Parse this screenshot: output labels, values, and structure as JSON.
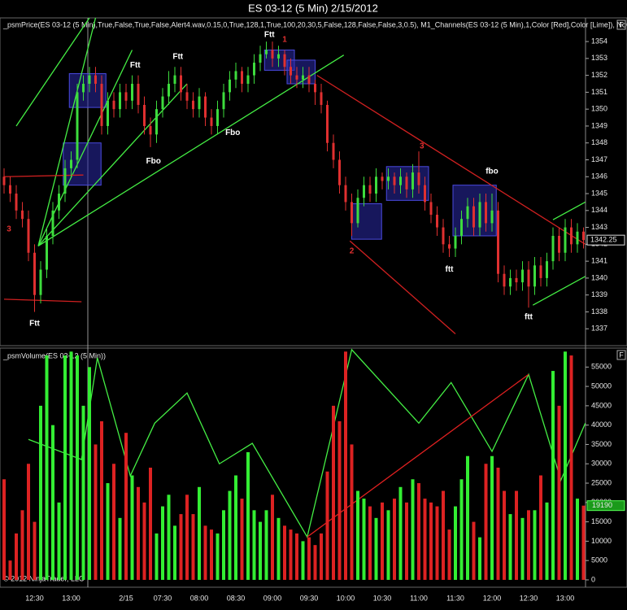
{
  "chart_data": [
    {
      "type": "candlestick",
      "title": "ES 03-12 (5 Min)  2/15/2012",
      "indicator_label": "_psmPrice(ES 03-12 (5 Min),True,False,True,False,Alert4.wav,0.15,0,True,128,1,True,100,20,30,5,False,128,False,False,3,0.5), M1_Channels(ES 03-12 (5 Min),1,Color [Red],Color [Lime]), NoGa–",
      "panel_button": "F",
      "categories": [
        null,
        null,
        null,
        null,
        null,
        "12:30",
        null,
        null,
        null,
        null,
        null,
        "13:00",
        null,
        null,
        null,
        null,
        null,
        null,
        null,
        null,
        "2/15",
        null,
        null,
        null,
        null,
        null,
        "07:30",
        null,
        null,
        null,
        null,
        null,
        "08:00",
        null,
        null,
        null,
        null,
        null,
        "08:30",
        null,
        null,
        null,
        null,
        null,
        "09:00",
        null,
        null,
        null,
        null,
        null,
        "09:30",
        null,
        null,
        null,
        null,
        null,
        "10:00",
        null,
        null,
        null,
        null,
        null,
        "10:30",
        null,
        null,
        null,
        null,
        null,
        "11:00",
        null,
        null,
        null,
        null,
        null,
        "11:30",
        null,
        null,
        null,
        null,
        null,
        "12:00",
        null,
        null,
        null,
        null,
        null,
        "12:30",
        null,
        null,
        null,
        null,
        null,
        "13:00",
        null,
        null,
        null
      ],
      "series": [
        {
          "up_color": "#3ddc3d",
          "down_color": "#e03030",
          "open": [
            1346,
            1345.5,
            1345,
            1344,
            1343.5,
            1341.5,
            1339,
            1340.5,
            1342.5,
            1344,
            1345,
            1346.5,
            1347,
            1351,
            1351.5,
            1352,
            1351.5,
            1349,
            1350.5,
            1350,
            1351,
            1350.5,
            1351.5,
            1350.25,
            1349,
            1348.5,
            1350,
            1350.75,
            1351.5,
            1352,
            1351,
            1350.5,
            1350,
            1350.75,
            1349.5,
            1349,
            1350,
            1351,
            1351.75,
            1352.25,
            1351.5,
            1352,
            1352.75,
            1353.25,
            1353.5,
            1353,
            1353.25,
            1352.5,
            1352,
            1351.75,
            1352,
            1351.5,
            1351,
            1350.25,
            1348,
            1347,
            1345.5,
            1344.5,
            1343.25,
            1344.75,
            1345.5,
            1345,
            1346,
            1345.75,
            1346,
            1345.5,
            1346,
            1345.25,
            1346.25,
            1345.5,
            1344.5,
            1343.75,
            1343,
            1342,
            1341.75,
            1342.5,
            1343.5,
            1344.25,
            1343,
            1344.5,
            1343.25,
            1344,
            1340.25,
            1339.5,
            1340,
            1339.75,
            1340.5,
            1339.5,
            1340.75,
            1340,
            1341,
            1342.5,
            1341.5,
            1343,
            1342,
            1342.75
          ],
          "high": [
            1346.5,
            1346,
            1345.5,
            1344.5,
            1344,
            1342,
            1341,
            1343,
            1344.5,
            1345.5,
            1347,
            1347.5,
            1351.5,
            1352,
            1352.5,
            1352.5,
            1352,
            1351,
            1351,
            1351.5,
            1351.5,
            1352,
            1352,
            1350.75,
            1349.5,
            1350.5,
            1351.25,
            1352.25,
            1352.5,
            1352.5,
            1351.5,
            1351,
            1351.25,
            1351,
            1350,
            1350.5,
            1351.5,
            1352.25,
            1352.75,
            1352.5,
            1352.5,
            1353.25,
            1353.75,
            1354,
            1354,
            1353.75,
            1353.5,
            1353,
            1352.5,
            1352.5,
            1352.5,
            1351.75,
            1351.5,
            1350.5,
            1348.5,
            1347.5,
            1346,
            1345,
            1345.25,
            1346,
            1346,
            1346.5,
            1346.25,
            1346.5,
            1346.25,
            1346.5,
            1346.25,
            1346.75,
            1347.5,
            1346,
            1345,
            1344.25,
            1343.5,
            1342.5,
            1343,
            1344,
            1344.75,
            1344.75,
            1345,
            1345,
            1345,
            1344.5,
            1340.75,
            1340.5,
            1340.5,
            1341,
            1341,
            1341.25,
            1341.25,
            1341.5,
            1343,
            1343,
            1343.5,
            1343.5,
            1343.25,
            1343
          ],
          "low": [
            1345,
            1344.5,
            1343.5,
            1343,
            1341,
            1338,
            1338.5,
            1340,
            1342,
            1343.5,
            1344.5,
            1346,
            1346.5,
            1350.5,
            1351,
            1351,
            1348.5,
            1348.5,
            1349.5,
            1349.5,
            1350,
            1350,
            1349.75,
            1348.5,
            1347.75,
            1348,
            1349.5,
            1350.25,
            1351,
            1350.5,
            1350,
            1349.5,
            1349.5,
            1349,
            1348.5,
            1348.5,
            1349.5,
            1350.5,
            1351.25,
            1351,
            1351,
            1351.5,
            1352.25,
            1353,
            1352.5,
            1352.5,
            1352,
            1351.5,
            1351.25,
            1351.25,
            1351,
            1350.25,
            1349.75,
            1347.5,
            1346.5,
            1345,
            1344,
            1342.5,
            1343,
            1344.25,
            1344.5,
            1344.5,
            1345.25,
            1345.25,
            1345,
            1345,
            1344.75,
            1344.75,
            1345,
            1344,
            1343.25,
            1342.5,
            1341.5,
            1341.25,
            1341.25,
            1342,
            1343,
            1342.5,
            1342.5,
            1342.75,
            1342.75,
            1339.75,
            1339,
            1339,
            1339.25,
            1339.25,
            1338.25,
            1339,
            1339.5,
            1339.5,
            1340.5,
            1341,
            1341,
            1341.5,
            1341.5,
            1341.75
          ],
          "close": [
            1345.5,
            1345,
            1344,
            1343.5,
            1341.5,
            1339,
            1340.5,
            1342.5,
            1344,
            1345,
            1346.5,
            1347,
            1351,
            1351.5,
            1352,
            1351.5,
            1349,
            1350.5,
            1350,
            1351,
            1350.5,
            1351.5,
            1350.25,
            1349,
            1348.5,
            1350,
            1350.75,
            1351.5,
            1352,
            1351,
            1350.5,
            1350,
            1350.75,
            1349.5,
            1349,
            1350,
            1351,
            1351.75,
            1352.25,
            1351.5,
            1352,
            1352.75,
            1353.25,
            1353.5,
            1353,
            1353.25,
            1352.5,
            1352,
            1351.75,
            1352,
            1351.5,
            1351,
            1350.25,
            1348,
            1347,
            1345.5,
            1344.5,
            1343.25,
            1344.75,
            1345.5,
            1345,
            1346,
            1345.75,
            1346,
            1345.5,
            1346,
            1345.25,
            1346.25,
            1345.5,
            1344.5,
            1343.75,
            1343,
            1342,
            1341.75,
            1342.5,
            1343.5,
            1344.25,
            1343,
            1344.5,
            1343.25,
            1344,
            1340.25,
            1339.5,
            1340,
            1339.75,
            1340.5,
            1339.5,
            1340.75,
            1340,
            1341,
            1342.5,
            1341.5,
            1343,
            1342,
            1342.75,
            1342.25
          ]
        }
      ],
      "ylim": [
        1336,
        1355.4
      ],
      "yticks": [
        1337,
        1338,
        1339,
        1340,
        1341,
        1342,
        1343,
        1344,
        1345,
        1346,
        1347,
        1348,
        1349,
        1350,
        1351,
        1352,
        1353,
        1354
      ],
      "grid": false,
      "annotations": [
        {
          "text": "Ftt",
          "x": 5,
          "y": 1337.3,
          "color": "#ffffff"
        },
        {
          "text": "Ftt",
          "x": 21.5,
          "y": 1352.6,
          "color": "#ffffff"
        },
        {
          "text": "Ftt",
          "x": 28.5,
          "y": 1353.1,
          "color": "#ffffff"
        },
        {
          "text": "Ftt",
          "x": 43.5,
          "y": 1354.4,
          "color": "#ffffff"
        },
        {
          "text": "1",
          "x": 46,
          "y": 1354.1,
          "color": "#e03030"
        },
        {
          "text": "Fbo",
          "x": 24.5,
          "y": 1346.9,
          "color": "#ffffff"
        },
        {
          "text": "Fbo",
          "x": 37.5,
          "y": 1348.6,
          "color": "#ffffff"
        },
        {
          "text": "2",
          "x": 57,
          "y": 1341.6,
          "color": "#e03030"
        },
        {
          "text": "3",
          "x": 68.5,
          "y": 1347.8,
          "color": "#e03030"
        },
        {
          "text": "ftt",
          "x": 73,
          "y": 1340.5,
          "color": "#ffffff"
        },
        {
          "text": "fbo",
          "x": 80,
          "y": 1346.3,
          "color": "#ffffff"
        },
        {
          "text": "ftt",
          "x": 86,
          "y": 1337.7,
          "color": "#ffffff"
        },
        {
          "text": "3",
          "x": 0.8,
          "y": 1342.9,
          "color": "#e03030"
        }
      ],
      "zones": [
        {
          "x": [
            10.7,
            16.7
          ],
          "y": [
            1350.1,
            1352.1
          ],
          "color": "#2a2aa8"
        },
        {
          "x": [
            9.7,
            15.9
          ],
          "y": [
            1345.5,
            1348
          ],
          "color": "#2a2aa8"
        },
        {
          "x": [
            42.7,
            47.6
          ],
          "y": [
            1352.3,
            1353.5
          ],
          "color": "#2a2aa8"
        },
        {
          "x": [
            46.4,
            51
          ],
          "y": [
            1351.5,
            1352.9
          ],
          "color": "#2a2aa8"
        },
        {
          "x": [
            57,
            61.9
          ],
          "y": [
            1342.3,
            1344.4
          ],
          "color": "#2a2aa8"
        },
        {
          "x": [
            62.7,
            69.6
          ],
          "y": [
            1344.6,
            1346.6
          ],
          "color": "#2a2aa8"
        },
        {
          "x": [
            73.6,
            80.7
          ],
          "y": [
            1342.5,
            1345.5
          ],
          "color": "#2a2aa8"
        }
      ],
      "lines": [
        {
          "x": [
            5.6,
            15
          ],
          "y": [
            1341.9,
            1355.4
          ],
          "color": "#44ee44"
        },
        {
          "x": [
            5.6,
            21
          ],
          "y": [
            1341.9,
            1353.5
          ],
          "color": "#44ee44"
        },
        {
          "x": [
            5.6,
            30
          ],
          "y": [
            1341.9,
            1351.5
          ],
          "color": "#44ee44"
        },
        {
          "x": [
            5.6,
            55.7
          ],
          "y": [
            1341.9,
            1353.2
          ],
          "color": "#44ee44"
        },
        {
          "x": [
            2,
            14
          ],
          "y": [
            1349,
            1355.4
          ],
          "color": "#44ee44"
        },
        {
          "x": [
            51.3,
            95.3
          ],
          "y": [
            1352,
            1342
          ],
          "color": "#d02020"
        },
        {
          "x": [
            56.7,
            74
          ],
          "y": [
            1342.2,
            1336.7
          ],
          "color": "#d02020"
        },
        {
          "x": [
            0,
            13
          ],
          "y": [
            1346,
            1346.1
          ],
          "color": "#d02020"
        },
        {
          "x": [
            0,
            12.7
          ],
          "y": [
            1338.75,
            1338.6
          ],
          "color": "#d02020"
        },
        {
          "x": [
            90,
            95.3
          ],
          "y": [
            1343.45,
            1344.5
          ],
          "color": "#44ee44"
        },
        {
          "x": [
            86.7,
            95.3
          ],
          "y": [
            1338.4,
            1340.1
          ],
          "color": "#44ee44"
        }
      ]
    },
    {
      "type": "bar",
      "indicator_label": "_psmVolume(ES 03-12 (5 Min))",
      "panel_button": "F",
      "copyright": "© 2012 NinjaTrader, LLC",
      "up_color": "#33ee33",
      "down_color": "#dd2222",
      "values": [
        26000,
        5000,
        12000,
        18000,
        30000,
        15000,
        45000,
        58000,
        40000,
        20000,
        58000,
        59000,
        58000,
        45000,
        55000,
        35000,
        41000,
        25000,
        30000,
        16000,
        38000,
        27000,
        24000,
        20000,
        29000,
        12000,
        19000,
        22000,
        14000,
        17000,
        22000,
        17000,
        24000,
        14000,
        13000,
        12000,
        18000,
        23000,
        27000,
        21000,
        33000,
        18000,
        15000,
        18000,
        22000,
        16000,
        14000,
        13000,
        12000,
        10000,
        11000,
        9000,
        12000,
        28000,
        45000,
        41000,
        59000,
        35000,
        23000,
        21000,
        19000,
        16000,
        20000,
        18000,
        21000,
        24000,
        20000,
        26000,
        25000,
        21000,
        20000,
        19000,
        23000,
        13000,
        19000,
        26000,
        32000,
        15000,
        11000,
        30000,
        32000,
        29000,
        23000,
        17000,
        23000,
        16000,
        18000,
        18000,
        27000,
        20000,
        54000,
        45000,
        59000,
        58000,
        21000,
        19190
      ],
      "ylim": [
        -1900,
        59900
      ],
      "yticks": [
        0,
        5000,
        10000,
        15000,
        20000,
        25000,
        30000,
        35000,
        40000,
        45000,
        50000,
        55000
      ],
      "lines": [
        {
          "x": [
            4,
            12.7,
            15.3,
            20.7,
            24.7,
            30,
            35.3,
            40.7,
            49.7,
            57,
            68,
            73.3,
            80,
            86,
            91.3,
            95.3
          ],
          "y": [
            36300,
            31100,
            57400,
            26900,
            40500,
            48300,
            30000,
            35300,
            11100,
            59500,
            40500,
            51000,
            33200,
            53100,
            25800,
            40500
          ],
          "color": "#44ee44"
        },
        {
          "x": [
            49.7,
            86
          ],
          "y": [
            11100,
            53100
          ],
          "color": "#e02020"
        }
      ]
    }
  ]
}
